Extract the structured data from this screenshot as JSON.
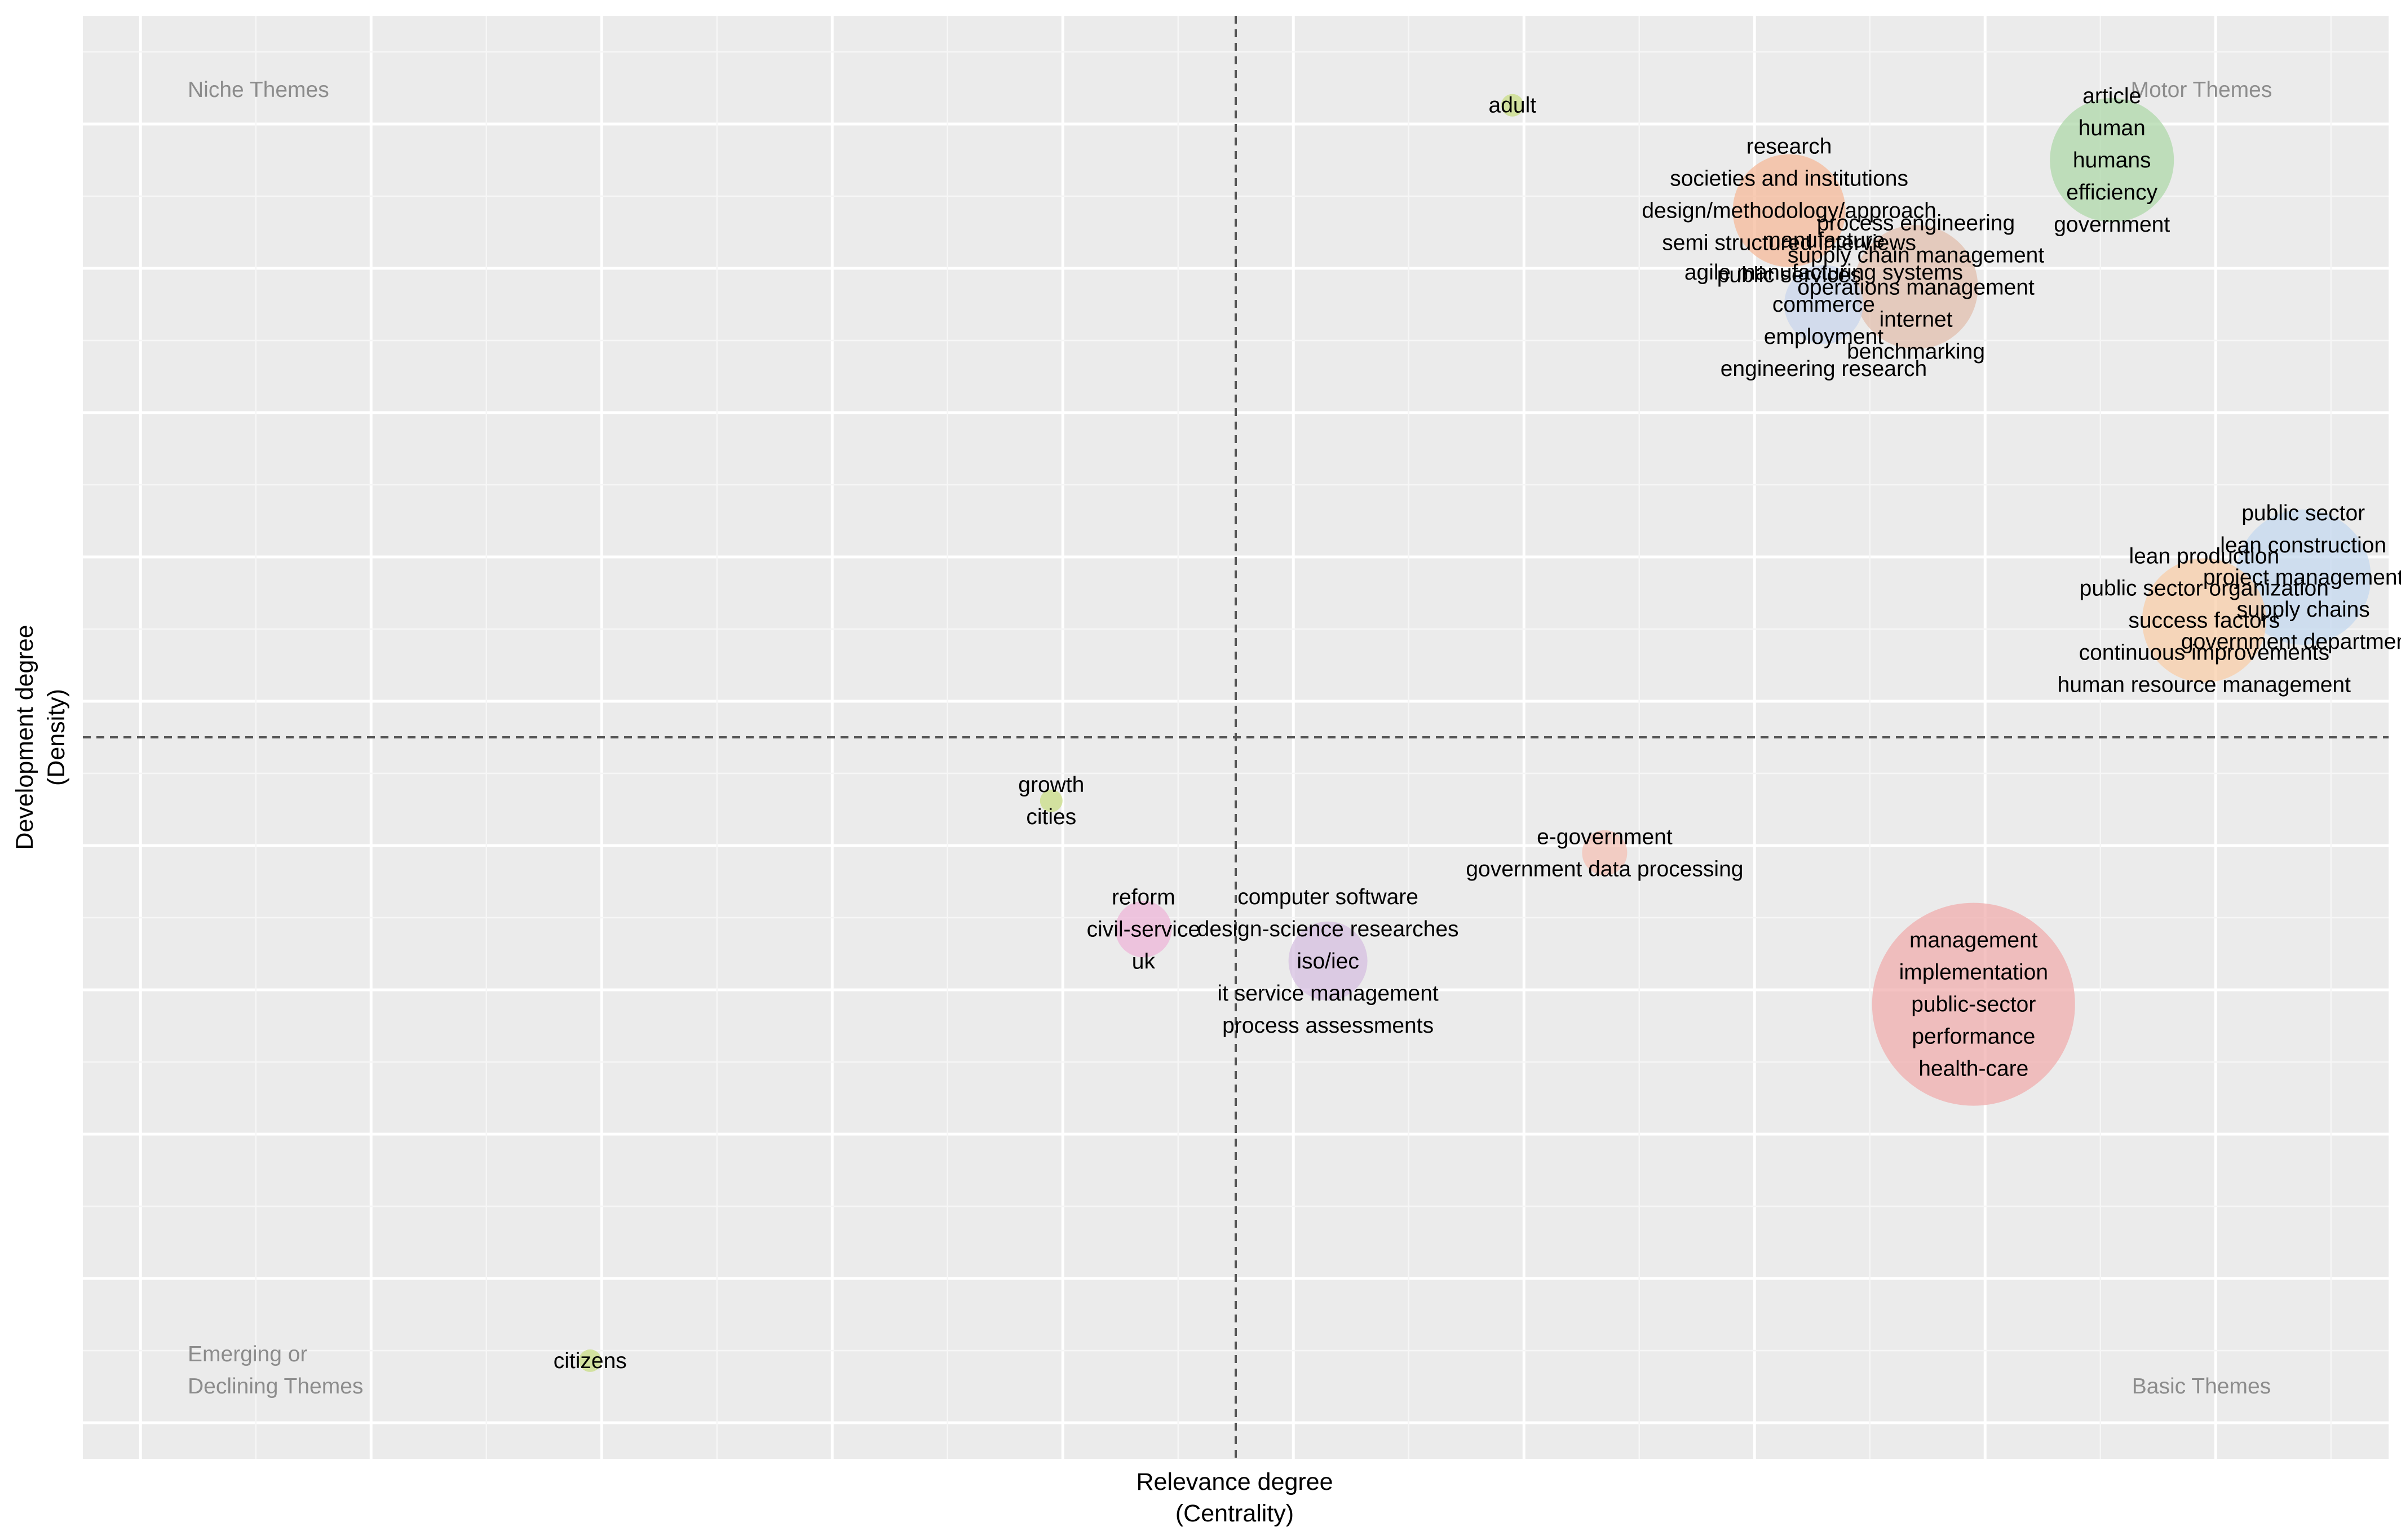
{
  "chart_data": {
    "type": "scatter",
    "subtype": "thematic-map",
    "xlabel": "Relevance degree",
    "xlabel_sub": "(Centrality)",
    "ylabel": "Development degree",
    "ylabel_sub": "(Density)",
    "xlim": [
      0,
      1000
    ],
    "ylim": [
      0,
      1000
    ],
    "grid": true,
    "x_divider": 500,
    "y_divider": 500,
    "quadrants": {
      "top_left": [
        "Niche Themes"
      ],
      "top_right": [
        "Motor Themes"
      ],
      "bottom_left": [
        "Emerging or",
        "Declining Themes"
      ],
      "bottom_right": [
        "Basic Themes"
      ]
    },
    "themes": [
      {
        "name": "adult",
        "x": 620,
        "y": 938,
        "size": 4,
        "color": "#c9dd86",
        "labels": [
          "adult"
        ]
      },
      {
        "name": "research",
        "x": 740,
        "y": 865,
        "size": 20,
        "color": "#f6b99a",
        "labels": [
          "research",
          "societies and institutions",
          "design/methodology/approach",
          "semi structured interviews",
          "public services"
        ]
      },
      {
        "name": "process engineering",
        "x": 795,
        "y": 812,
        "size": 22,
        "color": "#e2bfae",
        "labels": [
          "process engineering",
          "supply chain management",
          "operations management",
          "internet",
          "benchmarking"
        ]
      },
      {
        "name": "article",
        "x": 880,
        "y": 900,
        "size": 22,
        "color": "#afd8aa",
        "labels": [
          "article",
          "human",
          "humans",
          "efficiency",
          "government"
        ]
      },
      {
        "name": "manufacture",
        "x": 755,
        "y": 800,
        "size": 14,
        "color": "#c9d6ec",
        "labels": [
          "manufacture",
          "agile manufacturing systems",
          "commerce",
          "employment",
          "engineering research"
        ]
      },
      {
        "name": "public sector",
        "x": 963,
        "y": 611,
        "size": 24,
        "color": "#c4d8ef",
        "labels": [
          "public sector",
          "lean construction",
          "project management",
          "supply chains",
          "government departments"
        ]
      },
      {
        "name": "lean production",
        "x": 920,
        "y": 581,
        "size": 22,
        "color": "#f8cda8",
        "labels": [
          "lean production",
          "public sector organization",
          "success factors",
          "continuous improvements",
          "human resource management"
        ]
      },
      {
        "name": "growth",
        "x": 420,
        "y": 456,
        "size": 4,
        "color": "#c9dd86",
        "labels": [
          "growth",
          "cities"
        ]
      },
      {
        "name": "e-government",
        "x": 660,
        "y": 420,
        "size": 8,
        "color": "#f4c2b6",
        "labels": [
          "e-government",
          "government data processing"
        ]
      },
      {
        "name": "reform",
        "x": 460,
        "y": 367,
        "size": 10,
        "color": "#eeb5d8",
        "labels": [
          "reform",
          "civil-service",
          "uk"
        ]
      },
      {
        "name": "iso/iec",
        "x": 540,
        "y": 345,
        "size": 14,
        "color": "#d5bfe0",
        "labels": [
          "computer software",
          "design-science researches",
          "iso/iec",
          "it service management",
          "process assessments"
        ]
      },
      {
        "name": "management",
        "x": 820,
        "y": 315,
        "size": 36,
        "color": "#f0aeae",
        "labels": [
          "management",
          "implementation",
          "public-sector",
          "performance",
          "health-care"
        ]
      },
      {
        "name": "citizens",
        "x": 220,
        "y": 68,
        "size": 4,
        "color": "#c9dd86",
        "labels": [
          "citizens"
        ]
      }
    ]
  }
}
